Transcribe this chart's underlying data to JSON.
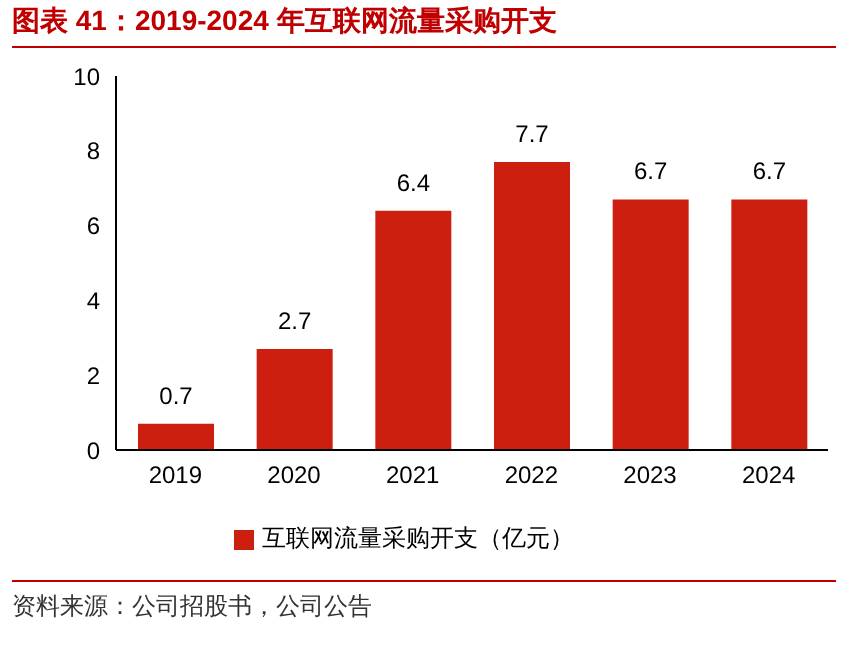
{
  "chart_data": {
    "type": "bar",
    "title": "图表 41：2019-2024 年互联网流量采购开支",
    "categories": [
      "2019",
      "2020",
      "2021",
      "2022",
      "2023",
      "2024"
    ],
    "series": [
      {
        "name": "互联网流量采购开支（亿元）",
        "color": "#cc1f0f",
        "values": [
          0.7,
          2.7,
          6.4,
          7.7,
          6.7,
          6.7
        ]
      }
    ],
    "ylim": [
      0,
      10
    ],
    "yticks": [
      0,
      2,
      4,
      6,
      8,
      10
    ],
    "grid": false,
    "data_labels": true,
    "legend": "bottom",
    "annotations": [
      "资料来源：公司招股书，公司公告"
    ]
  }
}
